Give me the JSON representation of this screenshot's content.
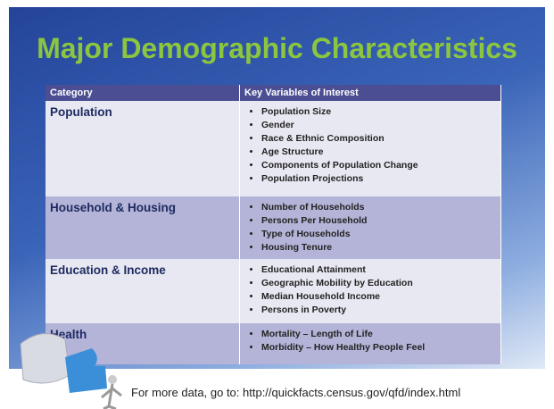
{
  "title": "Major Demographic Characteristics",
  "table": {
    "header": [
      "Category",
      "Key Variables of Interest"
    ],
    "rows": [
      {
        "category": "Population",
        "variables": [
          "Population Size",
          "Gender",
          "Race & Ethnic Composition",
          "Age Structure",
          "Components of Population Change",
          "Population Projections"
        ]
      },
      {
        "category": "Household & Housing",
        "variables": [
          "Number of Households",
          "Persons Per Household",
          "Type of Households",
          "Housing Tenure"
        ]
      },
      {
        "category": "Education & Income",
        "variables": [
          "Educational Attainment",
          "Geographic Mobility by Education",
          "Median Household Income",
          "Persons in Poverty"
        ]
      },
      {
        "category": "Health",
        "variables": [
          "Mortality – Length of Life",
          "Morbidity – How Healthy People Feel"
        ]
      }
    ]
  },
  "footer": "For more data, go to: http://quickfacts.census.gov/qfd/index.html"
}
